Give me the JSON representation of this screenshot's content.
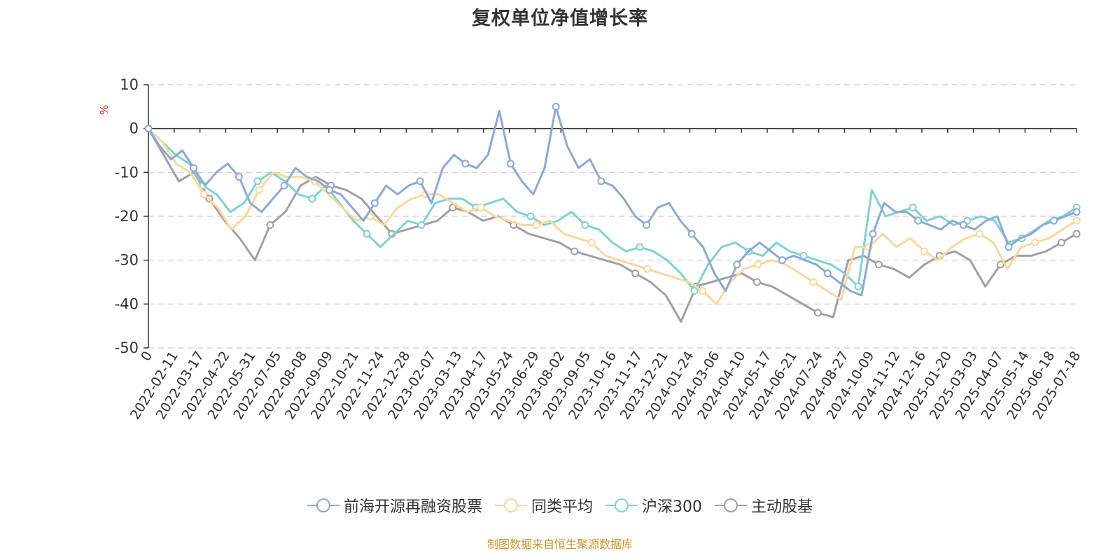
{
  "title": "复权单位净值增长率",
  "source_note": "制图数据来自恒生聚源数据库",
  "colors": {
    "title": "#333333",
    "unit": "#e02020",
    "source": "#c8962a",
    "axis": "#333333",
    "grid": "#cccccc"
  },
  "chart_data": {
    "type": "line",
    "ylabel": "%",
    "ylim": [
      -50,
      10
    ],
    "yticks": [
      10,
      0,
      -10,
      -20,
      -30,
      -40,
      -50
    ],
    "grid": "horizontal dashed",
    "legend_position": "bottom",
    "x_tick_labels": [
      "0",
      "2022-02-11",
      "2022-03-17",
      "2022-04-22",
      "2022-05-31",
      "2022-07-05",
      "2022-08-08",
      "2022-09-09",
      "2022-10-21",
      "2022-11-24",
      "2022-12-28",
      "2023-02-07",
      "2023-03-13",
      "2023-04-17",
      "2023-05-24",
      "2023-06-29",
      "2023-08-02",
      "2023-09-05",
      "2023-10-16",
      "2023-11-17",
      "2023-12-21",
      "2024-01-24",
      "2024-03-06",
      "2024-04-10",
      "2024-05-17",
      "2024-06-21",
      "2024-07-24",
      "2024-08-27",
      "2024-10-09",
      "2024-11-12",
      "2024-12-16",
      "2025-01-20",
      "2025-03-03",
      "2025-04-07",
      "2025-05-14",
      "2025-06-18",
      "2025-07-18"
    ],
    "series": [
      {
        "name": "前海开源再融资股票",
        "color": "#8aa9d8",
        "values": [
          0,
          -4,
          -7,
          -5,
          -9,
          -13,
          -10,
          -8,
          -11,
          -17,
          -19,
          -16,
          -13,
          -9,
          -11,
          -12,
          -14,
          -15,
          -18,
          -21,
          -17,
          -13,
          -15,
          -13,
          -12,
          -17,
          -9,
          -6,
          -8,
          -9,
          -6,
          4,
          -8,
          -12,
          -15,
          -9,
          5,
          -4,
          -9,
          -7,
          -12,
          -13,
          -16,
          -20,
          -22,
          -18,
          -17,
          -21,
          -24,
          -27,
          -33,
          -37,
          -31,
          -28,
          -26,
          -28,
          -30,
          -29,
          -30,
          -31,
          -33,
          -35,
          -37,
          -38,
          -24,
          -17,
          -19,
          -19,
          -21,
          -22,
          -23,
          -21,
          -22,
          -23,
          -21,
          -20,
          -27,
          -25,
          -24,
          -22,
          -21,
          -20,
          -19
        ]
      },
      {
        "name": "同类平均",
        "color": "#fbd79a",
        "values": [
          0,
          -3,
          -8,
          -10,
          -15,
          -18,
          -23,
          -20,
          -14,
          -10,
          -11,
          -11,
          -12,
          -15,
          -18,
          -21,
          -20,
          -22,
          -18,
          -16,
          -15,
          -15,
          -17,
          -19,
          -18,
          -20,
          -21,
          -22,
          -22,
          -21,
          -24,
          -25,
          -26,
          -29,
          -30,
          -31,
          -32,
          -33,
          -34,
          -35,
          -37,
          -40,
          -35,
          -32,
          -31,
          -30,
          -31,
          -33,
          -35,
          -37,
          -39,
          -27,
          -27,
          -24,
          -27,
          -25,
          -28,
          -30,
          -27,
          -25,
          -24,
          -26,
          -32,
          -27,
          -26,
          -25,
          -23,
          -21
        ]
      },
      {
        "name": "沪深300",
        "color": "#7dd3d1",
        "values": [
          0,
          -3,
          -6,
          -8,
          -13,
          -15,
          -19,
          -17,
          -12,
          -10,
          -12,
          -15,
          -16,
          -13,
          -17,
          -21,
          -24,
          -27,
          -24,
          -21,
          -22,
          -17,
          -16,
          -16,
          -18,
          -17,
          -16,
          -19,
          -20,
          -22,
          -21,
          -19,
          -22,
          -23,
          -26,
          -28,
          -27,
          -28,
          -30,
          -33,
          -37,
          -31,
          -27,
          -26,
          -28,
          -29,
          -26,
          -28,
          -29,
          -30,
          -31,
          -33,
          -36,
          -14,
          -20,
          -19,
          -18,
          -21,
          -20,
          -22,
          -21,
          -20,
          -21,
          -26,
          -25,
          -23,
          -21,
          -20,
          -18
        ]
      },
      {
        "name": "主动股基",
        "color": "#a0a0a0",
        "values": [
          0,
          -6,
          -12,
          -10,
          -16,
          -21,
          -25,
          -30,
          -22,
          -19,
          -13,
          -11,
          -13,
          -14,
          -16,
          -20,
          -24,
          -23,
          -22,
          -21,
          -18,
          -19,
          -21,
          -20,
          -22,
          -24,
          -25,
          -26,
          -28,
          -29,
          -30,
          -31,
          -33,
          -35,
          -38,
          -44,
          -36,
          -35,
          -34,
          -33,
          -35,
          -36,
          -38,
          -40,
          -42,
          -43,
          -30,
          -29,
          -31,
          -32,
          -34,
          -31,
          -29,
          -28,
          -30,
          -36,
          -31,
          -29,
          -29,
          -28,
          -26,
          -24
        ]
      }
    ]
  }
}
